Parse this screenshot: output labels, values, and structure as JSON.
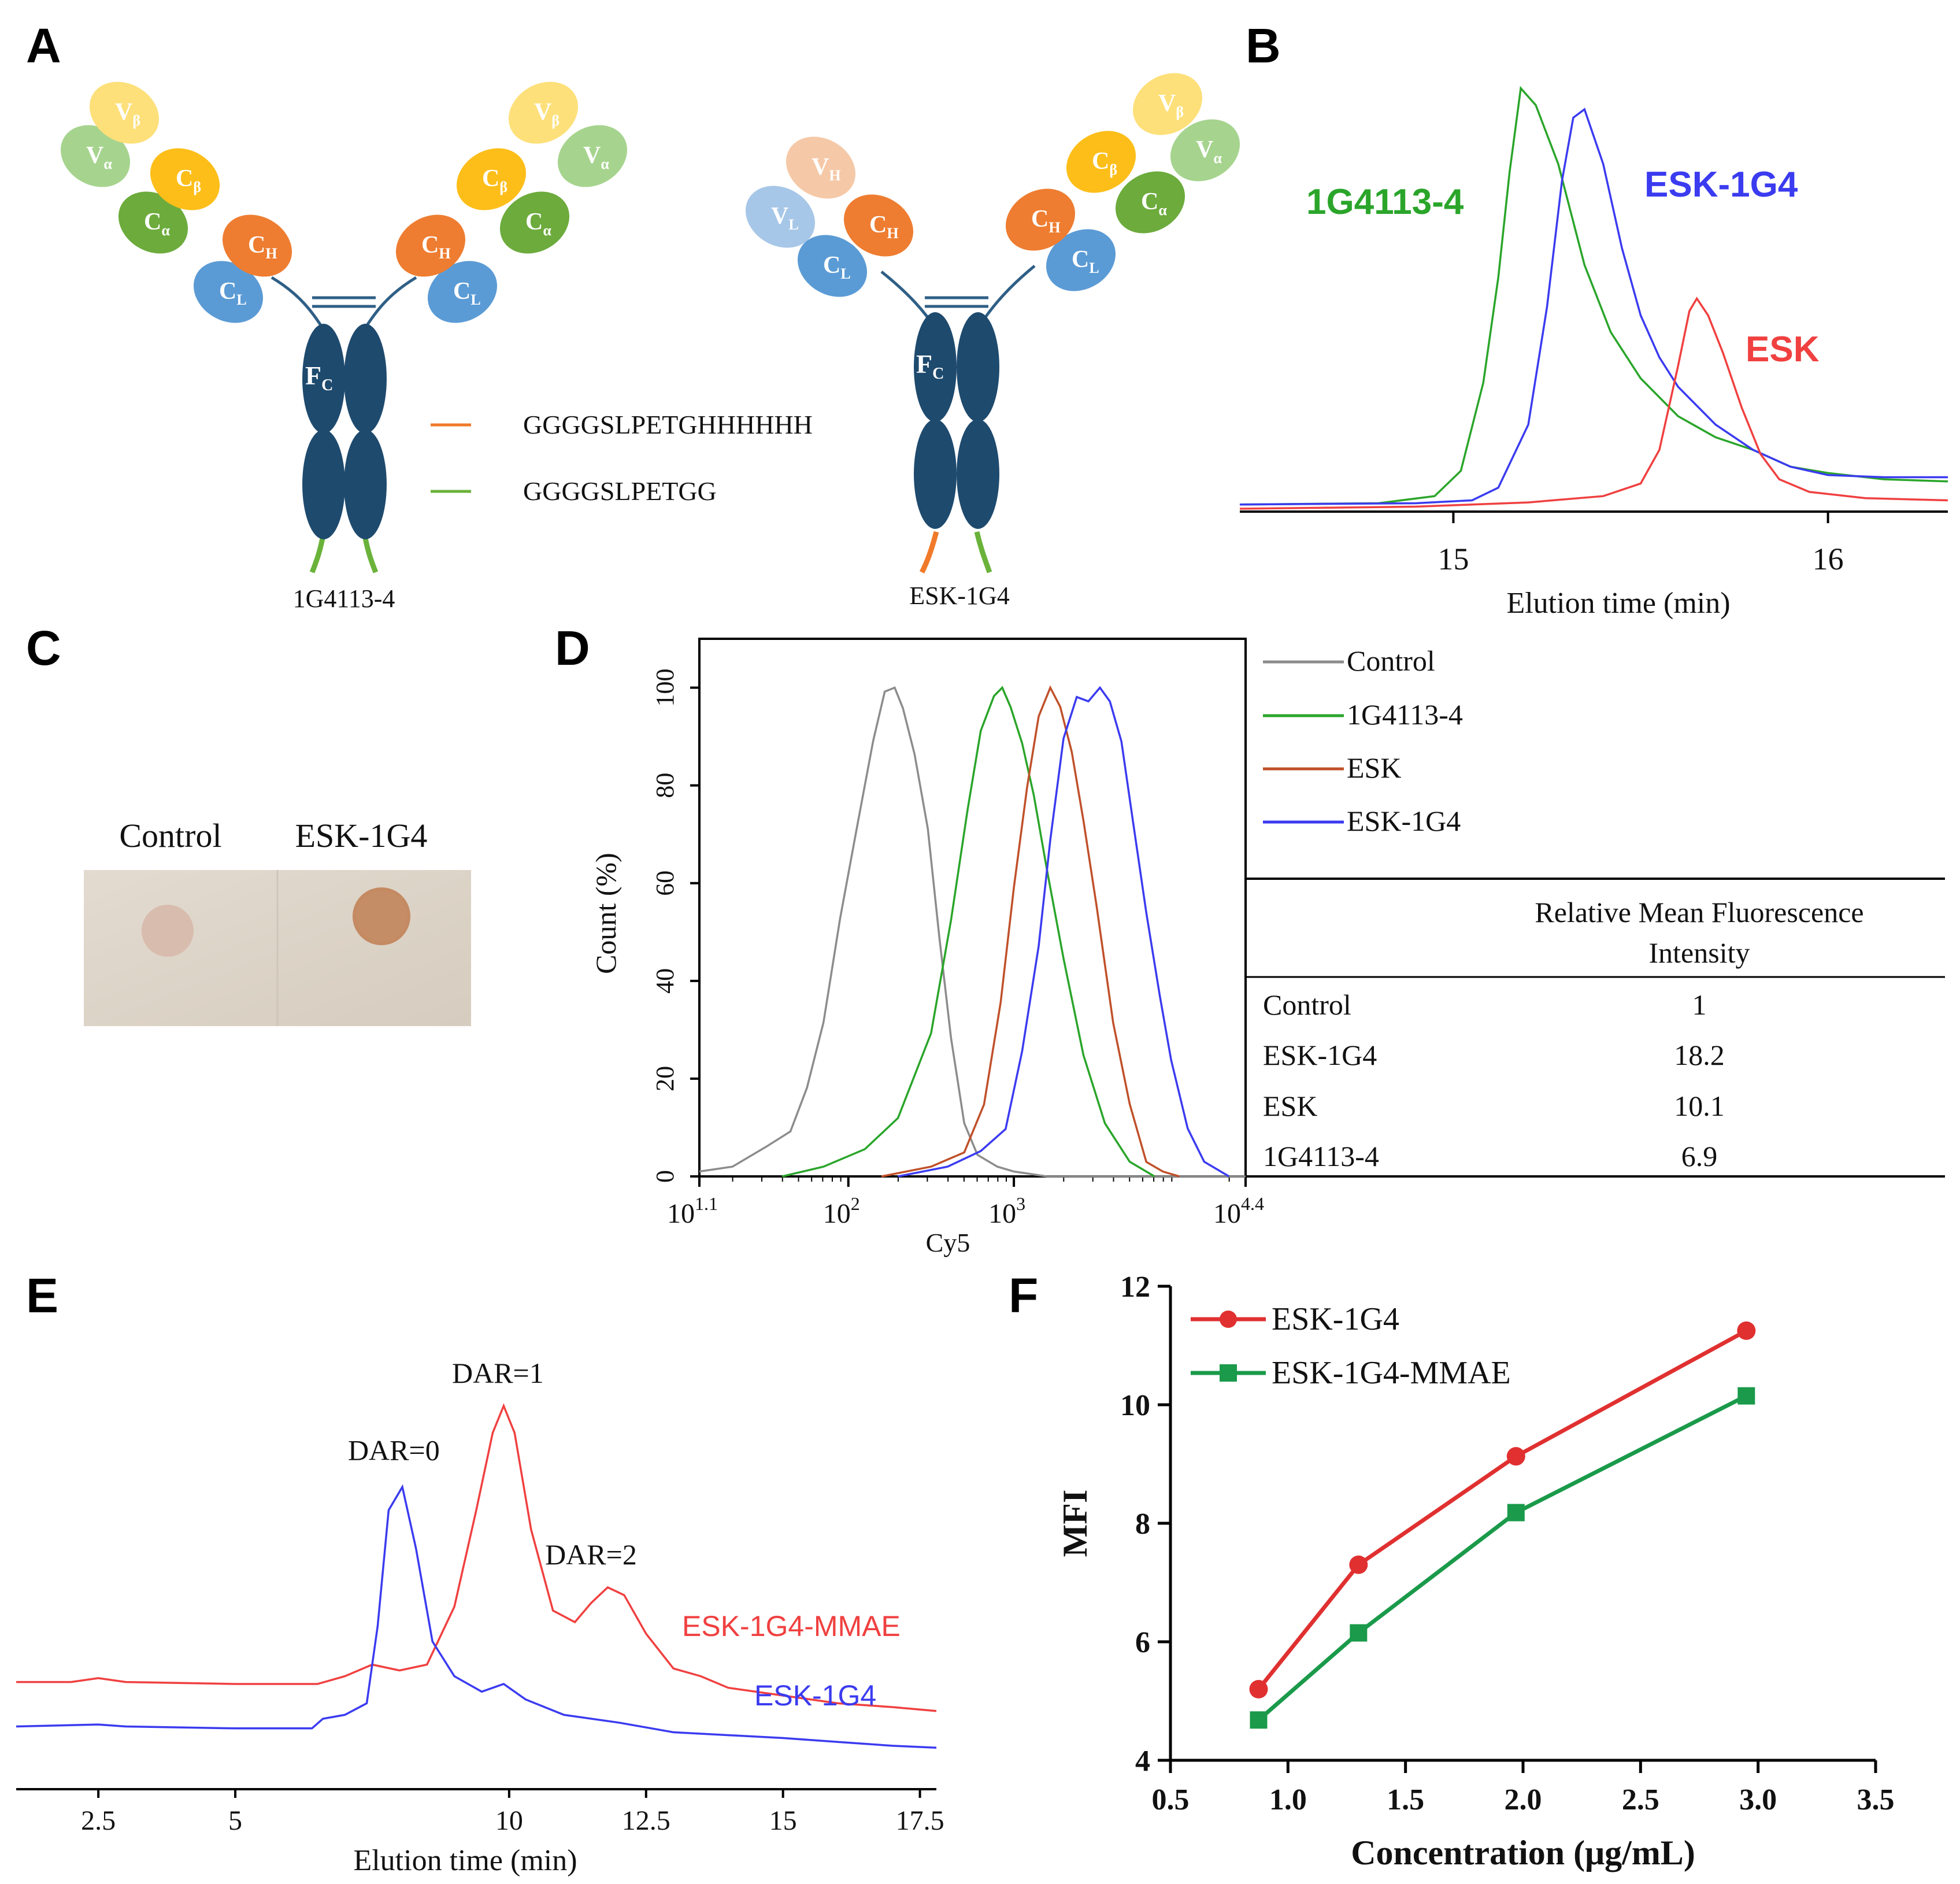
{
  "colors": {
    "green": "#2aa52a",
    "blue": "#3b3bf0",
    "red": "#f04040",
    "gray": "#8c8c8c",
    "brown": "#c0502a",
    "navy": "#1e4a6e",
    "linker_orange": "#f07a2a",
    "linker_green": "#6ab23a",
    "f_red": "#e03030",
    "f_green": "#1a9a4a"
  },
  "panels": {
    "A": "A",
    "B": "B",
    "C": "C",
    "D": "D",
    "E": "E",
    "F": "F"
  },
  "panel_a": {
    "left_label": "1G4113-4",
    "right_label": "ESK-1G4",
    "legend": [
      {
        "text": "GGGGSLPETGHHHHHH",
        "color": "#f07a2a"
      },
      {
        "text": "GGGGSLPETGG",
        "color": "#6ab23a"
      }
    ],
    "domains": {
      "v_beta": {
        "main": "V",
        "sub": "β"
      },
      "c_beta": {
        "main": "C",
        "sub": "β"
      },
      "v_alpha": {
        "main": "V",
        "sub": "α"
      },
      "c_alpha": {
        "main": "C",
        "sub": "α"
      },
      "c_h": {
        "main": "C",
        "sub": "H"
      },
      "c_l": {
        "main": "C",
        "sub": "L"
      },
      "v_h": {
        "main": "V",
        "sub": "H"
      },
      "v_l": {
        "main": "V",
        "sub": "L"
      },
      "f_c": {
        "main": "F",
        "sub": "C"
      }
    }
  },
  "chart_data": [
    {
      "panel": "B",
      "type": "line",
      "xlabel": "Elution time (min)",
      "ylabel": "",
      "xlim": [
        14.43,
        16.32
      ],
      "ylim": [
        0,
        1.1
      ],
      "xticks": [
        15,
        16
      ],
      "series": [
        {
          "name": "1G4113-4",
          "color": "#2aa52a",
          "label": "1G4113-4",
          "points": [
            [
              14.43,
              0.01
            ],
            [
              14.8,
              0.013
            ],
            [
              14.95,
              0.03
            ],
            [
              15.02,
              0.09
            ],
            [
              15.08,
              0.3
            ],
            [
              15.12,
              0.55
            ],
            [
              15.15,
              0.8
            ],
            [
              15.18,
              1.0
            ],
            [
              15.22,
              0.96
            ],
            [
              15.28,
              0.82
            ],
            [
              15.35,
              0.58
            ],
            [
              15.42,
              0.42
            ],
            [
              15.5,
              0.31
            ],
            [
              15.6,
              0.22
            ],
            [
              15.7,
              0.17
            ],
            [
              15.8,
              0.14
            ],
            [
              15.9,
              0.1
            ],
            [
              16.0,
              0.085
            ],
            [
              16.15,
              0.07
            ],
            [
              16.32,
              0.065
            ]
          ]
        },
        {
          "name": "ESK-1G4",
          "color": "#3b3bf0",
          "label": "ESK-1G4",
          "points": [
            [
              14.43,
              0.01
            ],
            [
              14.9,
              0.013
            ],
            [
              15.05,
              0.02
            ],
            [
              15.12,
              0.05
            ],
            [
              15.2,
              0.2
            ],
            [
              15.25,
              0.48
            ],
            [
              15.29,
              0.78
            ],
            [
              15.32,
              0.93
            ],
            [
              15.35,
              0.95
            ],
            [
              15.4,
              0.82
            ],
            [
              15.45,
              0.62
            ],
            [
              15.5,
              0.46
            ],
            [
              15.55,
              0.36
            ],
            [
              15.6,
              0.29
            ],
            [
              15.7,
              0.2
            ],
            [
              15.8,
              0.14
            ],
            [
              15.9,
              0.1
            ],
            [
              16.0,
              0.08
            ],
            [
              16.15,
              0.075
            ],
            [
              16.32,
              0.075
            ]
          ]
        },
        {
          "name": "ESK",
          "color": "#f04040",
          "label": "ESK",
          "points": [
            [
              14.43,
              0.0
            ],
            [
              14.9,
              0.005
            ],
            [
              15.2,
              0.015
            ],
            [
              15.4,
              0.03
            ],
            [
              15.5,
              0.06
            ],
            [
              15.55,
              0.14
            ],
            [
              15.6,
              0.34
            ],
            [
              15.63,
              0.47
            ],
            [
              15.65,
              0.5
            ],
            [
              15.68,
              0.46
            ],
            [
              15.72,
              0.37
            ],
            [
              15.77,
              0.24
            ],
            [
              15.82,
              0.13
            ],
            [
              15.87,
              0.07
            ],
            [
              15.95,
              0.04
            ],
            [
              16.1,
              0.025
            ],
            [
              16.32,
              0.02
            ]
          ]
        }
      ]
    },
    {
      "panel": "D",
      "type": "line",
      "xlabel": "Cy5",
      "ylabel": "Count (%)",
      "xscale": "log10",
      "xlim": [
        1.1,
        4.4
      ],
      "ylim": [
        0,
        110
      ],
      "xticks": [
        {
          "base": "10",
          "exp": "1.1",
          "v": 1.1
        },
        {
          "base": "10",
          "exp": "2",
          "v": 2
        },
        {
          "base": "10",
          "exp": "3",
          "v": 3
        },
        {
          "base": "10",
          "exp": "4.4",
          "v": 4.4
        }
      ],
      "yticks": [
        0,
        20,
        40,
        60,
        80,
        100
      ],
      "series": [
        {
          "name": "Control",
          "color": "#8c8c8c",
          "points": [
            [
              1.1,
              1
            ],
            [
              1.3,
              2
            ],
            [
              1.5,
              5
            ],
            [
              1.65,
              9
            ],
            [
              1.75,
              18
            ],
            [
              1.85,
              32
            ],
            [
              1.95,
              52
            ],
            [
              2.05,
              72
            ],
            [
              2.15,
              88
            ],
            [
              2.22,
              98
            ],
            [
              2.28,
              100
            ],
            [
              2.33,
              96
            ],
            [
              2.4,
              86
            ],
            [
              2.48,
              70
            ],
            [
              2.55,
              48
            ],
            [
              2.62,
              28
            ],
            [
              2.7,
              12
            ],
            [
              2.78,
              5
            ],
            [
              2.9,
              2
            ],
            [
              3.0,
              1
            ],
            [
              3.2,
              0
            ],
            [
              4.4,
              0
            ]
          ]
        },
        {
          "name": "1G4113-4",
          "color": "#2aa52a",
          "points": [
            [
              1.6,
              0
            ],
            [
              1.85,
              2
            ],
            [
              2.1,
              5
            ],
            [
              2.3,
              12
            ],
            [
              2.5,
              30
            ],
            [
              2.62,
              52
            ],
            [
              2.72,
              75
            ],
            [
              2.8,
              90
            ],
            [
              2.88,
              98
            ],
            [
              2.93,
              100
            ],
            [
              2.98,
              96
            ],
            [
              3.05,
              88
            ],
            [
              3.12,
              77
            ],
            [
              3.2,
              62
            ],
            [
              3.3,
              45
            ],
            [
              3.42,
              26
            ],
            [
              3.55,
              12
            ],
            [
              3.7,
              3
            ],
            [
              3.85,
              0
            ]
          ]
        },
        {
          "name": "ESK",
          "color": "#c0502a",
          "points": [
            [
              2.2,
              0
            ],
            [
              2.5,
              2
            ],
            [
              2.7,
              6
            ],
            [
              2.82,
              15
            ],
            [
              2.92,
              35
            ],
            [
              3.0,
              58
            ],
            [
              3.08,
              80
            ],
            [
              3.15,
              95
            ],
            [
              3.22,
              100
            ],
            [
              3.28,
              97
            ],
            [
              3.35,
              88
            ],
            [
              3.42,
              74
            ],
            [
              3.5,
              55
            ],
            [
              3.6,
              32
            ],
            [
              3.7,
              14
            ],
            [
              3.8,
              4
            ],
            [
              3.9,
              1
            ],
            [
              4.0,
              0
            ]
          ]
        },
        {
          "name": "ESK-1G4",
          "color": "#3b3bf0",
          "points": [
            [
              2.3,
              0
            ],
            [
              2.6,
              2
            ],
            [
              2.8,
              4
            ],
            [
              2.95,
              10
            ],
            [
              3.05,
              25
            ],
            [
              3.15,
              48
            ],
            [
              3.22,
              70
            ],
            [
              3.3,
              90
            ],
            [
              3.38,
              97
            ],
            [
              3.45,
              96
            ],
            [
              3.52,
              100
            ],
            [
              3.58,
              96
            ],
            [
              3.65,
              88
            ],
            [
              3.72,
              72
            ],
            [
              3.8,
              55
            ],
            [
              3.88,
              38
            ],
            [
              3.95,
              24
            ],
            [
              4.05,
              10
            ],
            [
              4.15,
              3
            ],
            [
              4.3,
              0
            ]
          ]
        }
      ],
      "legend": [
        "Control",
        "1G4113-4",
        "ESK",
        "ESK-1G4"
      ],
      "table": {
        "header": [
          "",
          "Relative Mean Fluorescence",
          "Intensity"
        ],
        "rows": [
          [
            "Control",
            "1"
          ],
          [
            "ESK-1G4",
            "18.2"
          ],
          [
            "ESK",
            "10.1"
          ],
          [
            "1G4113-4",
            "6.9"
          ]
        ]
      }
    },
    {
      "panel": "E",
      "type": "line",
      "xlabel": "Elution time (min)",
      "ylabel": "",
      "xlim": [
        1,
        17.8
      ],
      "ylim": [
        0,
        1.1
      ],
      "xticks": [
        2.5,
        5,
        10,
        12.5,
        15,
        17.5
      ],
      "series": [
        {
          "name": "ESK-1G4-MMAE",
          "color": "#f04040",
          "label": "ESK-1G4-MMAE",
          "points": [
            [
              1,
              0.255
            ],
            [
              2,
              0.255
            ],
            [
              2.5,
              0.265
            ],
            [
              3,
              0.255
            ],
            [
              5,
              0.25
            ],
            [
              6.5,
              0.25
            ],
            [
              7,
              0.27
            ],
            [
              7.5,
              0.3
            ],
            [
              8,
              0.285
            ],
            [
              8.5,
              0.3
            ],
            [
              9,
              0.45
            ],
            [
              9.4,
              0.7
            ],
            [
              9.7,
              0.9
            ],
            [
              9.9,
              0.97
            ],
            [
              10.1,
              0.9
            ],
            [
              10.4,
              0.65
            ],
            [
              10.8,
              0.44
            ],
            [
              11.2,
              0.41
            ],
            [
              11.5,
              0.46
            ],
            [
              11.8,
              0.5
            ],
            [
              12.1,
              0.48
            ],
            [
              12.5,
              0.38
            ],
            [
              13,
              0.29
            ],
            [
              13.5,
              0.27
            ],
            [
              14,
              0.24
            ],
            [
              15,
              0.22
            ],
            [
              16,
              0.2
            ],
            [
              17,
              0.19
            ],
            [
              17.8,
              0.18
            ]
          ]
        },
        {
          "name": "ESK-1G4",
          "color": "#3b3bf0",
          "label": "ESK-1G4",
          "points": [
            [
              1,
              0.14
            ],
            [
              2.5,
              0.145
            ],
            [
              3,
              0.14
            ],
            [
              5,
              0.135
            ],
            [
              6.4,
              0.135
            ],
            [
              6.6,
              0.16
            ],
            [
              7,
              0.17
            ],
            [
              7.4,
              0.2
            ],
            [
              7.6,
              0.4
            ],
            [
              7.8,
              0.7
            ],
            [
              8.05,
              0.76
            ],
            [
              8.3,
              0.6
            ],
            [
              8.6,
              0.36
            ],
            [
              9,
              0.27
            ],
            [
              9.5,
              0.23
            ],
            [
              9.9,
              0.25
            ],
            [
              10.3,
              0.21
            ],
            [
              11,
              0.17
            ],
            [
              12,
              0.15
            ],
            [
              13,
              0.125
            ],
            [
              15,
              0.11
            ],
            [
              16,
              0.1
            ],
            [
              17,
              0.09
            ],
            [
              17.8,
              0.085
            ]
          ]
        }
      ],
      "annotations": [
        {
          "text": "DAR=0",
          "x": 8.0,
          "y": 0.8
        },
        {
          "text": "DAR=1",
          "x": 9.9,
          "y": 1.0
        },
        {
          "text": "DAR=2",
          "x": 11.6,
          "y": 0.53
        }
      ]
    },
    {
      "panel": "F",
      "type": "line",
      "xlabel": "Concentration (μg/mL)",
      "ylabel": "MFI",
      "xlim": [
        0.5,
        3.5
      ],
      "ylim": [
        4,
        12
      ],
      "xticks": [
        "0.5",
        "1.0",
        "1.5",
        "2.0",
        "2.5",
        "3.0",
        "3.5"
      ],
      "yticks": [
        "4",
        "6",
        "8",
        "10",
        "12"
      ],
      "series": [
        {
          "name": "ESK-1G4",
          "color": "#e03030",
          "marker": "circle",
          "x": [
            0.875,
            1.3,
            1.97,
            2.95
          ],
          "y": [
            5.2,
            7.3,
            9.13,
            11.25
          ]
        },
        {
          "name": "ESK-1G4-MMAE",
          "color": "#1a9a4a",
          "marker": "square",
          "x": [
            0.875,
            1.3,
            1.97,
            2.95
          ],
          "y": [
            4.68,
            6.15,
            8.18,
            10.15
          ]
        }
      ]
    }
  ],
  "panel_c": {
    "labels": [
      "Control",
      "ESK-1G4"
    ]
  }
}
